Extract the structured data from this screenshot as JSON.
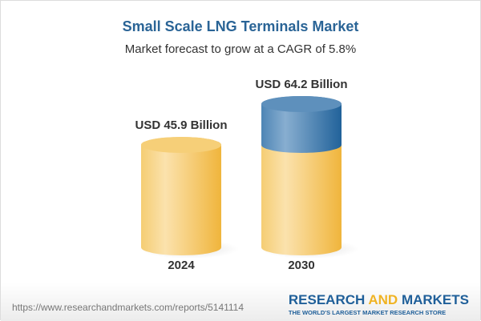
{
  "chart_data": {
    "type": "bar",
    "style": "3d-cylinder",
    "title": "Small Scale LNG Terminals Market",
    "subtitle": "Market forecast to grow at a CAGR of 5.8%",
    "categories": [
      "2024",
      "2030"
    ],
    "values": [
      45.9,
      64.2
    ],
    "unit": "USD Billion",
    "data_labels": [
      "USD 45.9 Billion",
      "USD 64.2 Billion"
    ],
    "colors": {
      "base": "#f3c25a",
      "growth": "#2f6fa3",
      "title": "#2a6496"
    }
  },
  "footer": {
    "url": "https://www.researchandmarkets.com/reports/5141114",
    "logo_left": "RESEARCH ",
    "logo_and": "AND",
    "logo_right": " MARKETS",
    "logo_tagline": "THE WORLD'S LARGEST MARKET RESEARCH STORE"
  }
}
